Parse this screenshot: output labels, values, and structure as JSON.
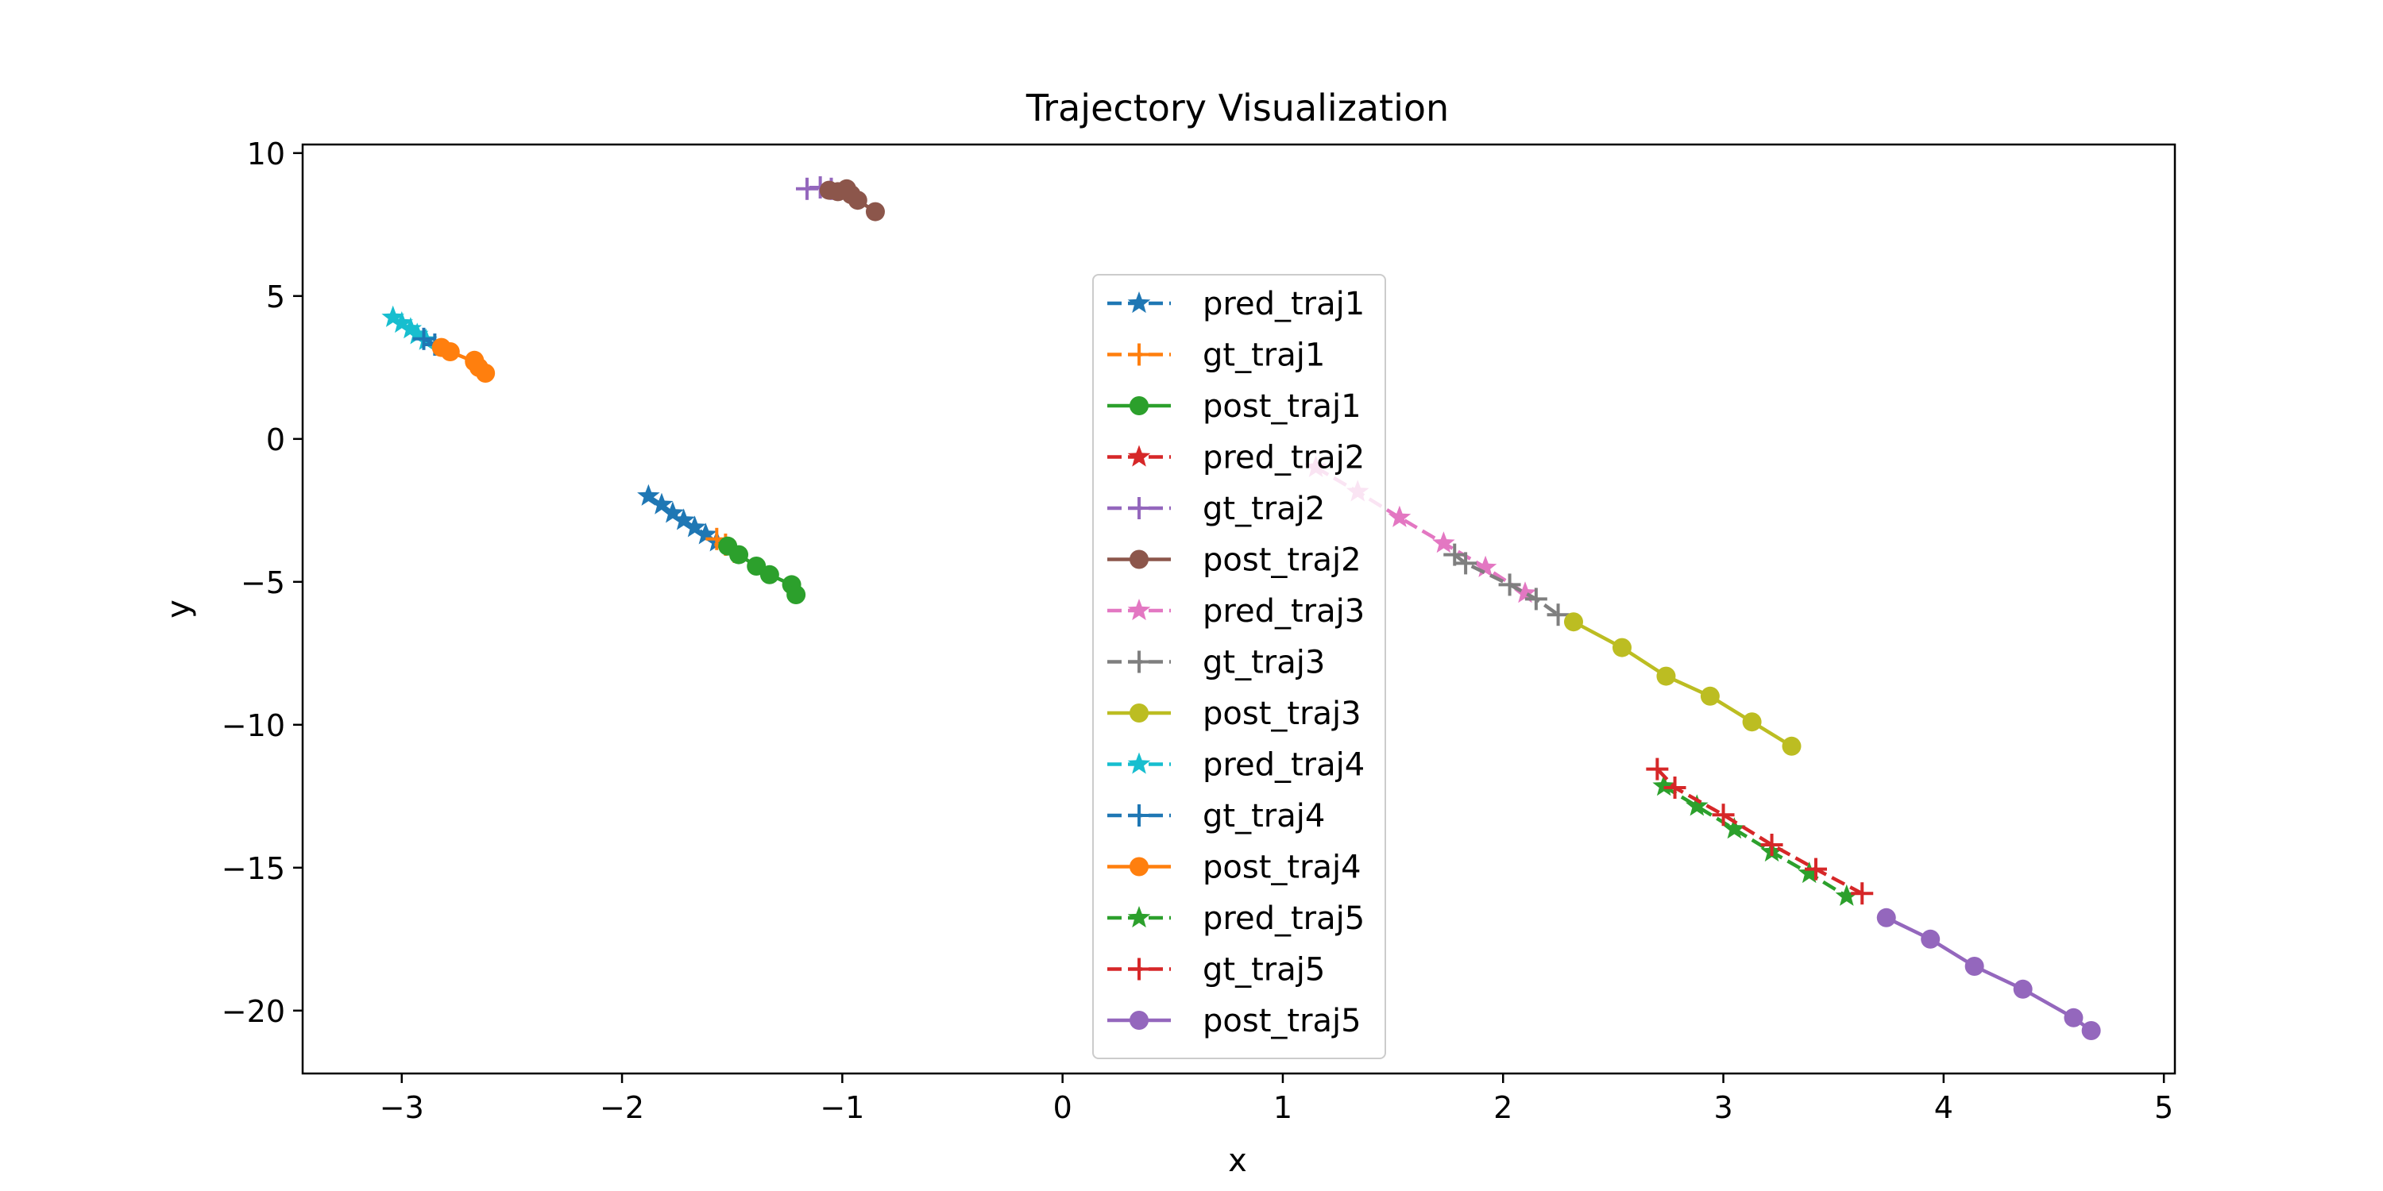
{
  "chart_data": {
    "type": "line",
    "title": "Trajectory Visualization",
    "xlabel": "x",
    "ylabel": "y",
    "xlim": [
      -3.45,
      5.05
    ],
    "ylim": [
      -22.2,
      10.3
    ],
    "xticks": [
      -3,
      -2,
      -1,
      0,
      1,
      2,
      3,
      4,
      5
    ],
    "xtick_labels": [
      "−3",
      "−2",
      "−1",
      "0",
      "1",
      "2",
      "3",
      "4",
      "5"
    ],
    "yticks": [
      10,
      5,
      0,
      -5,
      -10,
      -15,
      -20
    ],
    "ytick_labels": [
      "10",
      "5",
      "0",
      "−5",
      "−10",
      "−15",
      "−20"
    ],
    "grid": false,
    "legend_position": "center",
    "series": [
      {
        "name": "pred_traj1",
        "color": "#1f77b4",
        "marker": "star",
        "linestyle": "dashed",
        "x": [
          -1.88,
          -1.82,
          -1.77,
          -1.72,
          -1.67,
          -1.62,
          -1.57
        ],
        "y": [
          -2.0,
          -2.3,
          -2.6,
          -2.85,
          -3.1,
          -3.35,
          -3.6
        ]
      },
      {
        "name": "gt_traj1",
        "color": "#ff7f0e",
        "marker": "plus",
        "linestyle": "dashed",
        "x": [
          -1.57,
          -1.53,
          -1.49
        ],
        "y": [
          -3.5,
          -3.7,
          -3.95
        ]
      },
      {
        "name": "post_traj1",
        "color": "#2ca02c",
        "marker": "circle",
        "linestyle": "solid",
        "x": [
          -1.52,
          -1.47,
          -1.39,
          -1.33,
          -1.23,
          -1.21
        ],
        "y": [
          -3.75,
          -4.05,
          -4.45,
          -4.75,
          -5.1,
          -5.45
        ]
      },
      {
        "name": "pred_traj2",
        "color": "#d62728",
        "marker": "star",
        "linestyle": "dashed",
        "x": [],
        "y": []
      },
      {
        "name": "gt_traj2",
        "color": "#9467bd",
        "marker": "plus",
        "linestyle": "dashed",
        "x": [
          -1.16,
          -1.1,
          -1.05
        ],
        "y": [
          8.75,
          8.8,
          8.75
        ]
      },
      {
        "name": "post_traj2",
        "color": "#8c564b",
        "marker": "circle",
        "linestyle": "solid",
        "x": [
          -1.06,
          -1.02,
          -0.98,
          -0.96,
          -0.93,
          -0.85
        ],
        "y": [
          8.7,
          8.65,
          8.75,
          8.55,
          8.35,
          7.95
        ]
      },
      {
        "name": "pred_traj3",
        "color": "#e377c2",
        "marker": "star",
        "linestyle": "dashed",
        "x": [
          1.15,
          1.34,
          1.53,
          1.73,
          1.92,
          2.1
        ],
        "y": [
          -1.0,
          -1.85,
          -2.75,
          -3.65,
          -4.5,
          -5.4
        ]
      },
      {
        "name": "gt_traj3",
        "color": "#7f7f7f",
        "marker": "plus",
        "linestyle": "dashed",
        "x": [
          1.78,
          1.83,
          2.03,
          2.15,
          2.25
        ],
        "y": [
          -4.05,
          -4.35,
          -5.1,
          -5.6,
          -6.15
        ]
      },
      {
        "name": "post_traj3",
        "color": "#bcbd22",
        "marker": "circle",
        "linestyle": "solid",
        "x": [
          2.32,
          2.54,
          2.74,
          2.94,
          3.13,
          3.31
        ],
        "y": [
          -6.4,
          -7.3,
          -8.3,
          -9.0,
          -9.9,
          -10.75
        ]
      },
      {
        "name": "pred_traj4",
        "color": "#17becf",
        "marker": "star",
        "linestyle": "dashed",
        "x": [
          -3.04,
          -3.0,
          -2.96,
          -2.93,
          -2.89
        ],
        "y": [
          4.25,
          4.05,
          3.85,
          3.65,
          3.45
        ]
      },
      {
        "name": "gt_traj4",
        "color": "#1f77b4",
        "marker": "plus",
        "linestyle": "dashed",
        "x": [
          -2.9,
          -2.85
        ],
        "y": [
          3.5,
          3.3
        ]
      },
      {
        "name": "post_traj4",
        "color": "#ff7f0e",
        "marker": "circle",
        "linestyle": "solid",
        "x": [
          -2.82,
          -2.78,
          -2.67,
          -2.67,
          -2.65,
          -2.62
        ],
        "y": [
          3.2,
          3.05,
          2.7,
          2.75,
          2.5,
          2.3
        ]
      },
      {
        "name": "pred_traj5",
        "color": "#2ca02c",
        "marker": "star",
        "linestyle": "dashed",
        "x": [
          2.73,
          2.88,
          3.05,
          3.22,
          3.39,
          3.56
        ],
        "y": [
          -12.15,
          -12.85,
          -13.65,
          -14.45,
          -15.2,
          -16.0
        ]
      },
      {
        "name": "gt_traj5",
        "color": "#d62728",
        "marker": "plus",
        "linestyle": "dashed",
        "x": [
          2.7,
          2.78,
          3.0,
          3.22,
          3.42,
          3.63
        ],
        "y": [
          -11.55,
          -12.2,
          -13.15,
          -14.2,
          -15.05,
          -15.9
        ]
      },
      {
        "name": "post_traj5",
        "color": "#9467bd",
        "marker": "circle",
        "linestyle": "solid",
        "x": [
          3.74,
          3.94,
          4.14,
          4.36,
          4.59,
          4.67
        ],
        "y": [
          -16.75,
          -17.5,
          -18.45,
          -19.25,
          -20.25,
          -20.7
        ]
      }
    ]
  }
}
